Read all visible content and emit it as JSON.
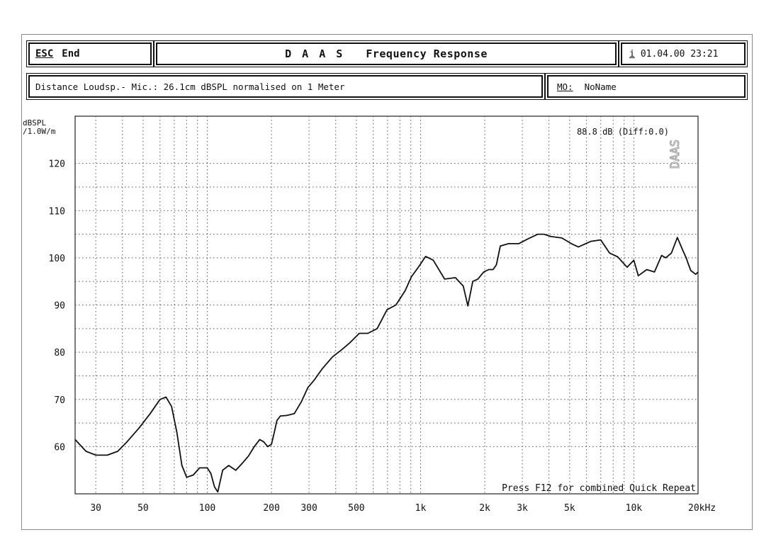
{
  "header": {
    "esc_key": "ESC",
    "esc_label": "End",
    "title_main": "D A A S",
    "title_sub": "Frequency Response",
    "info_key": "i",
    "datetime": "01.04.00 23:21",
    "distance_text": "Distance Loudsp.- Mic.: 26.1cm dBSPL normalised on 1 Meter",
    "mo_key": "M",
    "mo_key_rest": "O:",
    "mo_name": "NoName"
  },
  "chart": {
    "ylabel_line1": "dBSPL",
    "ylabel_line2": "/1.0W/m",
    "readout": "88.8 dB (Diff:0.0)",
    "watermark": "DAAS",
    "footer_hint": "Press F12 for combined Quick Repeat"
  },
  "chart_data": {
    "type": "line",
    "x_scale": "log",
    "xlim": [
      24,
      20000
    ],
    "ylim": [
      50,
      130
    ],
    "yticks": [
      60,
      70,
      80,
      90,
      100,
      110,
      120
    ],
    "xticks": [
      {
        "v": 30,
        "label": "30"
      },
      {
        "v": 50,
        "label": "50"
      },
      {
        "v": 100,
        "label": "100"
      },
      {
        "v": 200,
        "label": "200"
      },
      {
        "v": 300,
        "label": "300"
      },
      {
        "v": 500,
        "label": "500"
      },
      {
        "v": 1000,
        "label": "1k"
      },
      {
        "v": 2000,
        "label": "2k"
      },
      {
        "v": 3000,
        "label": "3k"
      },
      {
        "v": 5000,
        "label": "5k"
      },
      {
        "v": 10000,
        "label": "10k"
      },
      {
        "v": 20000,
        "label": "20kHz"
      }
    ],
    "grid": true,
    "series": [
      {
        "x": [
          24,
          27,
          30,
          34,
          38,
          42,
          48,
          54,
          60,
          64,
          68,
          72,
          76,
          80,
          86,
          92,
          100,
          104,
          108,
          112,
          118,
          126,
          136,
          146,
          156,
          166,
          176,
          184,
          192,
          200,
          206,
          212,
          220,
          236,
          256,
          276,
          296,
          316,
          346,
          386,
          426,
          466,
          516,
          566,
          626,
          696,
          766,
          846,
          906,
          976,
          1056,
          1146,
          1296,
          1456,
          1586,
          1666,
          1756,
          1856,
          1976,
          2086,
          2186,
          2266,
          2366,
          2586,
          2886,
          3186,
          3546,
          3796,
          4096,
          4596,
          5096,
          5496,
          6296,
          6996,
          7696,
          8396,
          9296,
          9996,
          10496,
          11496,
          12496,
          13496,
          14096,
          14996,
          15996,
          16996,
          17596,
          17896,
          18496,
          19496,
          19996
        ],
        "y": [
          61.5,
          59,
          58.2,
          58.2,
          59,
          61,
          64,
          67,
          70,
          70.5,
          68.5,
          63,
          56,
          53.5,
          54,
          55.5,
          55.5,
          54.3,
          51.5,
          50.4,
          55,
          56,
          55,
          56.5,
          58,
          60,
          61.5,
          61,
          60,
          60.5,
          63,
          65.5,
          66.5,
          66.6,
          67,
          69.5,
          72.5,
          74,
          76.5,
          79,
          80.5,
          82,
          84,
          84,
          85,
          89,
          90,
          93,
          96,
          98,
          100.3,
          99.5,
          95.5,
          95.8,
          94,
          89.8,
          95,
          95.5,
          97,
          97.5,
          97.5,
          98.5,
          102.5,
          103,
          103,
          104,
          105,
          105,
          104.5,
          104.2,
          103,
          102.3,
          103.5,
          103.8,
          101,
          100.2,
          98,
          99.5,
          96.2,
          97.5,
          97,
          100.5,
          100,
          101,
          104.3,
          101.5,
          100,
          99,
          97.3,
          96.5,
          97
        ]
      }
    ]
  }
}
